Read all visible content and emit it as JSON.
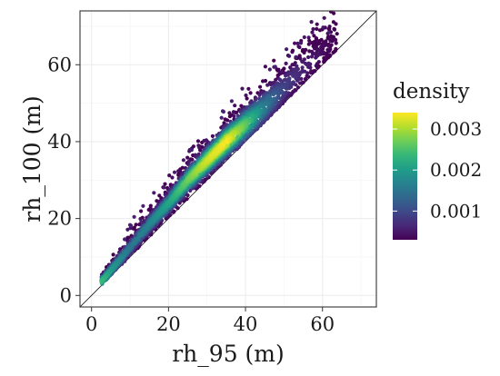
{
  "chart_data": {
    "type": "scatter",
    "title": "",
    "xlabel": "rh_95 (m)",
    "ylabel": "rh_100 (m)",
    "xlim": [
      -3,
      74
    ],
    "ylim": [
      -3,
      74
    ],
    "xticks": [
      0,
      20,
      40,
      60
    ],
    "yticks": [
      0,
      20,
      40,
      60
    ],
    "x_tick_labels": [
      "0",
      "20",
      "40",
      "60"
    ],
    "y_tick_labels": [
      "0",
      "20",
      "40",
      "60"
    ],
    "grid": true,
    "reference_line": "y = x",
    "color_by": "density",
    "legend": {
      "title": "density",
      "placement": "right",
      "type": "colorbar",
      "range": [
        0.0003,
        0.0034
      ],
      "breaks": [
        0.001,
        0.002,
        0.003
      ],
      "break_labels": [
        "0.001",
        "0.002",
        "0.003"
      ],
      "colormap": "viridis"
    },
    "colors": {
      "viridis": [
        "#440154",
        "#482878",
        "#3e4989",
        "#31688e",
        "#26828e",
        "#1f9e89",
        "#35b779",
        "#6ece58",
        "#b5de2b",
        "#fde725"
      ],
      "background": "#ffffff",
      "grid": "#ebebeb",
      "border": "#333333"
    },
    "point_summary": [
      {
        "x": 2.5,
        "y": 3.5,
        "density": 0.0024
      },
      {
        "x": 5,
        "y": 6.5,
        "density": 0.002
      },
      {
        "x": 10,
        "y": 12.5,
        "density": 0.0015
      },
      {
        "x": 15,
        "y": 18.5,
        "density": 0.0017
      },
      {
        "x": 20,
        "y": 24,
        "density": 0.0021
      },
      {
        "x": 25,
        "y": 30,
        "density": 0.0027
      },
      {
        "x": 30,
        "y": 35,
        "density": 0.0032
      },
      {
        "x": 35,
        "y": 40,
        "density": 0.0034
      },
      {
        "x": 40,
        "y": 44.5,
        "density": 0.0026
      },
      {
        "x": 45,
        "y": 49,
        "density": 0.0016
      },
      {
        "x": 50,
        "y": 54,
        "density": 0.0009
      },
      {
        "x": 55,
        "y": 59,
        "density": 0.0006
      },
      {
        "x": 60,
        "y": 63.5,
        "density": 0.0004
      },
      {
        "x": 64,
        "y": 67.5,
        "density": 0.0003
      }
    ]
  }
}
